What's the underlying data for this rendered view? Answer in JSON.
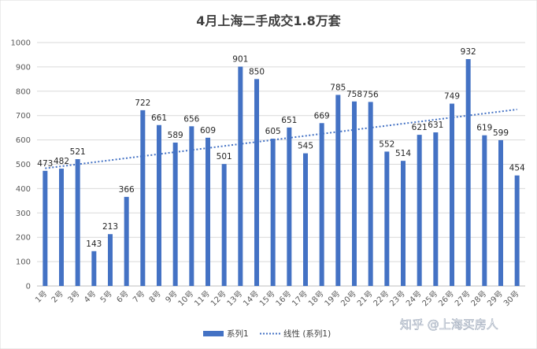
{
  "chart_data": {
    "type": "bar",
    "title": "4月上海二手成交1.8万套",
    "xlabel": "",
    "ylabel": "",
    "ylim": [
      0,
      1000
    ],
    "yticks": [
      0,
      100,
      200,
      300,
      400,
      500,
      600,
      700,
      800,
      900,
      1000
    ],
    "categories": [
      "1号",
      "2号",
      "3号",
      "4号",
      "5号",
      "6号",
      "7号",
      "8号",
      "9号",
      "10号",
      "11号",
      "12号",
      "13号",
      "14号",
      "15号",
      "16号",
      "17号",
      "18号",
      "19号",
      "20号",
      "21号",
      "22号",
      "23号",
      "24号",
      "25号",
      "26号",
      "27号",
      "28号",
      "29号",
      "30号"
    ],
    "series": [
      {
        "name": "系列1",
        "type": "bar",
        "color": "#4472C4",
        "values": [
          473,
          482,
          521,
          143,
          213,
          366,
          722,
          661,
          589,
          656,
          609,
          501,
          901,
          850,
          605,
          651,
          545,
          669,
          785,
          758,
          756,
          552,
          514,
          621,
          631,
          749,
          932,
          619,
          599,
          454
        ]
      }
    ],
    "trendline": {
      "name": "线性 (系列1)",
      "type": "linear",
      "color": "#4472C4"
    },
    "grid": true,
    "legend_position": "bottom"
  },
  "legend": {
    "bar_label": "系列1",
    "trend_label": "线性 (系列1)"
  },
  "watermark": "知乎 @上海买房人"
}
